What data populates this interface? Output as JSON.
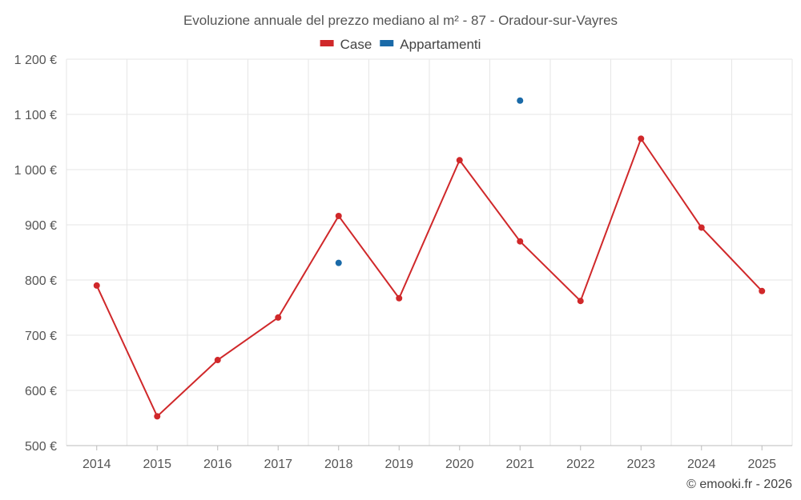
{
  "chart_data": {
    "type": "line",
    "title": "Evoluzione annuale del prezzo mediano al m² - 87 - Oradour-sur-Vayres",
    "categories": [
      "2014",
      "2015",
      "2016",
      "2017",
      "2018",
      "2019",
      "2020",
      "2021",
      "2022",
      "2023",
      "2024",
      "2025"
    ],
    "ylim": [
      500,
      1200
    ],
    "yticks": [
      500,
      600,
      700,
      800,
      900,
      1000,
      1100,
      1200
    ],
    "ytick_labels": [
      "500 €",
      "600 €",
      "700 €",
      "800 €",
      "900 €",
      "1 000 €",
      "1 100 €",
      "1 200 €"
    ],
    "xlabel": "",
    "ylabel": "",
    "grid": true,
    "legend_position": "top-center",
    "series": [
      {
        "name": "Case",
        "color": "#d0282a",
        "style": "line",
        "values": [
          790,
          553,
          655,
          732,
          916,
          767,
          1017,
          870,
          762,
          1056,
          895,
          780
        ]
      },
      {
        "name": "Appartamenti",
        "color": "#1a6aa8",
        "style": "points",
        "values": [
          null,
          null,
          null,
          null,
          831,
          null,
          null,
          1125,
          null,
          null,
          null,
          null
        ]
      }
    ]
  },
  "footer": {
    "credit": "© emooki.fr - 2026"
  }
}
